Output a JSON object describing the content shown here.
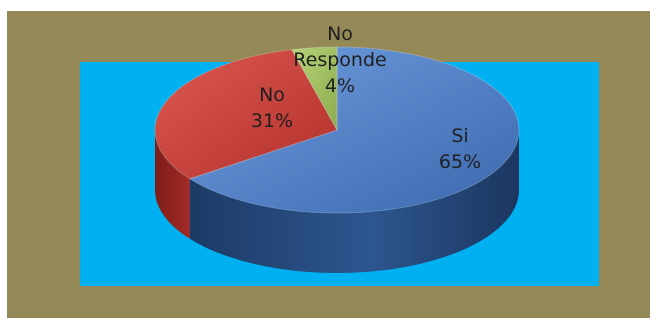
{
  "chart_data": {
    "type": "pie",
    "style": "3d",
    "categories": [
      "Si",
      "No",
      "No Responde"
    ],
    "values": [
      65,
      31,
      4
    ],
    "value_labels": [
      "65%",
      "31%",
      "4%"
    ],
    "colors": [
      "#4a7ec8",
      "#c63a34",
      "#9bbb59"
    ],
    "background_color": "#958a57",
    "plot_area_color": "#00b0f0",
    "legend": "none"
  }
}
